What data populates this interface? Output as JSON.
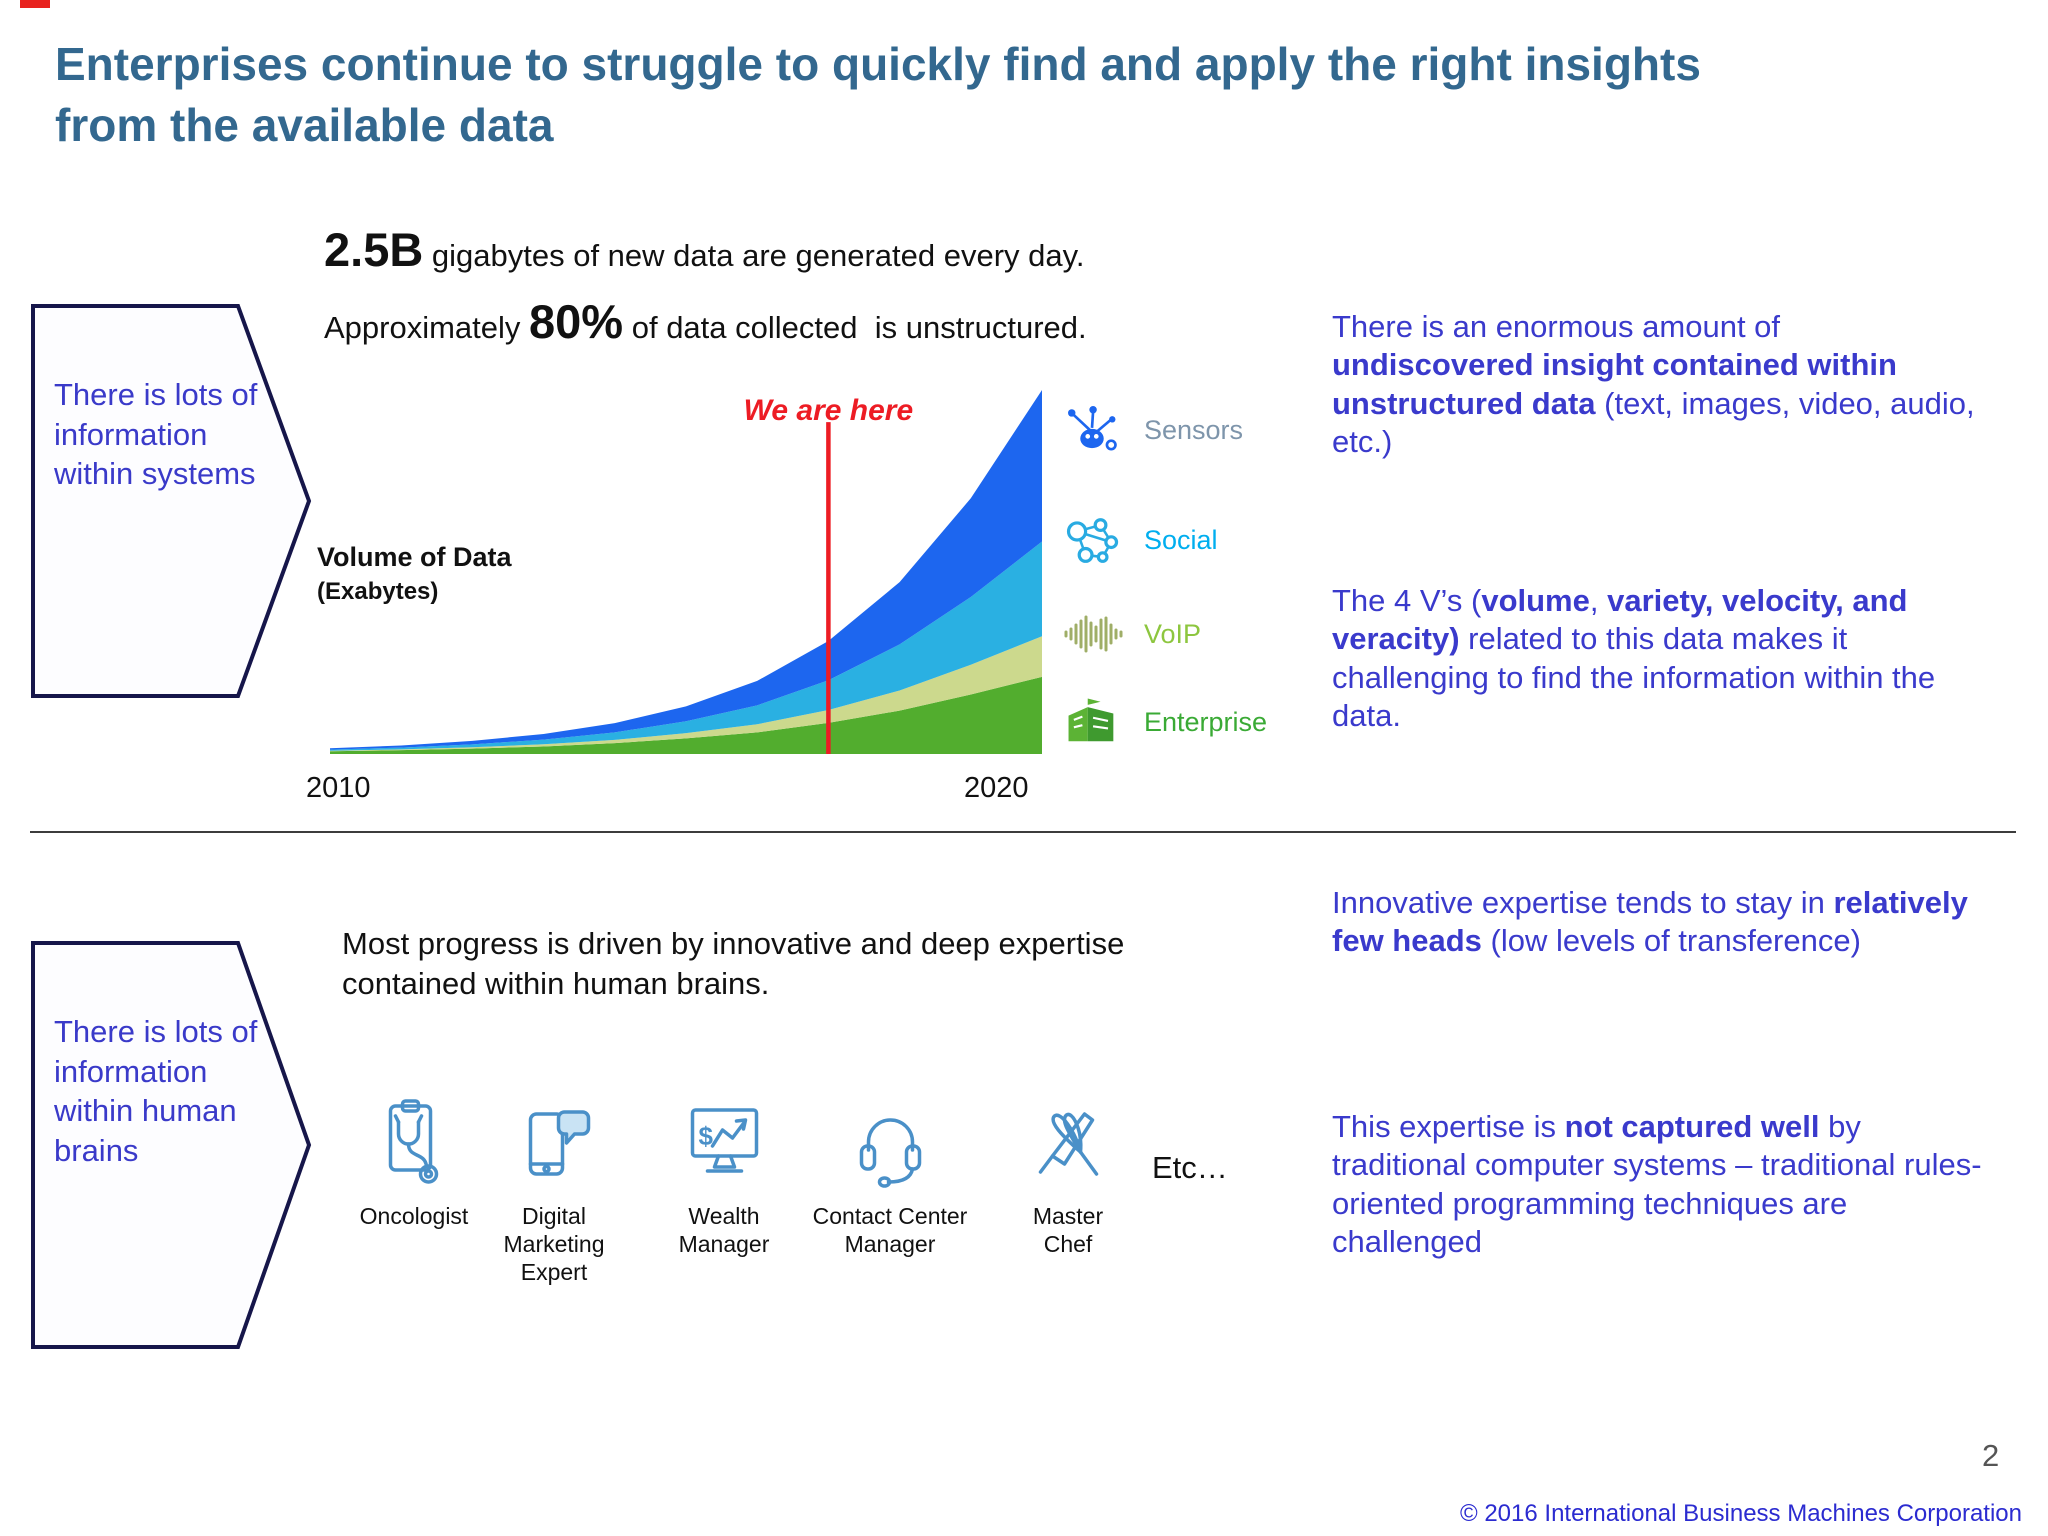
{
  "slide": {
    "title": "Enterprises continue to struggle to quickly find and apply the right insights from the available data",
    "page_number": "2",
    "copyright": "© 2016 International Business Machines Corporation",
    "colors": {
      "title": "#33688f",
      "body_blue": "#3a3acc",
      "callout_text": "#3a3ac9",
      "annotation_red": "#ed1c24"
    }
  },
  "stats": {
    "line1": [
      {
        "t": "2.5B",
        "c": "stat-big"
      },
      {
        "t": " gigabytes of new data are generated every day."
      }
    ],
    "line2": [
      {
        "t": "Approximately "
      },
      {
        "t": "80%",
        "c": "stat-big"
      },
      {
        "t": " of data collected  is unstructured."
      }
    ]
  },
  "callouts": {
    "systems": "There is lots of information within systems",
    "brains": "There is lots of information within human brains"
  },
  "chart_data": {
    "type": "area",
    "stacked": true,
    "title": "Volume of Data (Exabytes)",
    "ylabel_line1": "Volume of Data",
    "ylabel_line2": "(Exabytes)",
    "x": [
      2010,
      2011,
      2012,
      2013,
      2014,
      2015,
      2016,
      2017,
      2018,
      2019,
      2020
    ],
    "x_tick_labels": [
      "2010",
      "2020"
    ],
    "ylim": [
      0,
      270
    ],
    "grid": false,
    "legend_position": "right",
    "series": [
      {
        "name": "Enterprise",
        "color": "#52ad2e",
        "values": [
          2,
          2.8,
          4,
          5.6,
          8,
          11.5,
          16,
          23,
          32,
          44,
          57
        ]
      },
      {
        "name": "VoIP",
        "color": "#ccd98d",
        "values": [
          0.4,
          0.65,
          1,
          1.6,
          2.5,
          3.9,
          6,
          9.5,
          15,
          22,
          30
        ]
      },
      {
        "name": "Social",
        "color": "#2ab0e2",
        "values": [
          0.8,
          1.3,
          2.1,
          3.4,
          5.5,
          8.8,
          14,
          22,
          34,
          50,
          70
        ]
      },
      {
        "name": "Sensors",
        "color": "#1d66ef",
        "values": [
          1,
          1.6,
          2.6,
          4.2,
          6.8,
          11,
          18,
          29,
          46,
          73,
          112
        ]
      }
    ],
    "annotation": {
      "label": "We are here",
      "x": 2017,
      "color": "#ed1c24"
    },
    "legend": [
      {
        "label": "Sensors",
        "color": "#7e95ab"
      },
      {
        "label": "Social",
        "color": "#00aeef"
      },
      {
        "label": "VoIP",
        "color": "#8dc63f"
      },
      {
        "label": "Enterprise",
        "color": "#3aaa35"
      }
    ]
  },
  "paragraphs": {
    "insight": [
      {
        "t": "There is an enormous amount of "
      },
      {
        "t": "undiscovered insight contained within unstructured data",
        "c": "b"
      },
      {
        "t": " (text, images, video, audio, etc.)"
      }
    ],
    "four_vs": [
      {
        "t": "The 4 V’s ("
      },
      {
        "t": "volume",
        "c": "b"
      },
      {
        "t": ", "
      },
      {
        "t": "variety, velocity, and veracity)",
        "c": "b"
      },
      {
        "t": " related to this data makes it challenging to find the information within the data."
      }
    ],
    "few_heads": [
      {
        "t": "Innovative expertise tends to stay in "
      },
      {
        "t": "relatively few heads",
        "c": "b"
      },
      {
        "t": " (low levels of transference)"
      }
    ],
    "not_captured": [
      {
        "t": "This expertise is "
      },
      {
        "t": "not captured well",
        "c": "b"
      },
      {
        "t": " by traditional computer systems – traditional rules-oriented programming techniques are challenged"
      }
    ]
  },
  "bottom": {
    "heading": "Most progress is driven by innovative and deep expertise contained within human brains.",
    "roles": [
      {
        "label": "Oncologist"
      },
      {
        "label": "Digital Marketing Expert"
      },
      {
        "label": "Wealth Manager"
      },
      {
        "label": "Contact Center Manager"
      },
      {
        "label": "Master Chef"
      }
    ],
    "etc_label": "Etc…"
  }
}
